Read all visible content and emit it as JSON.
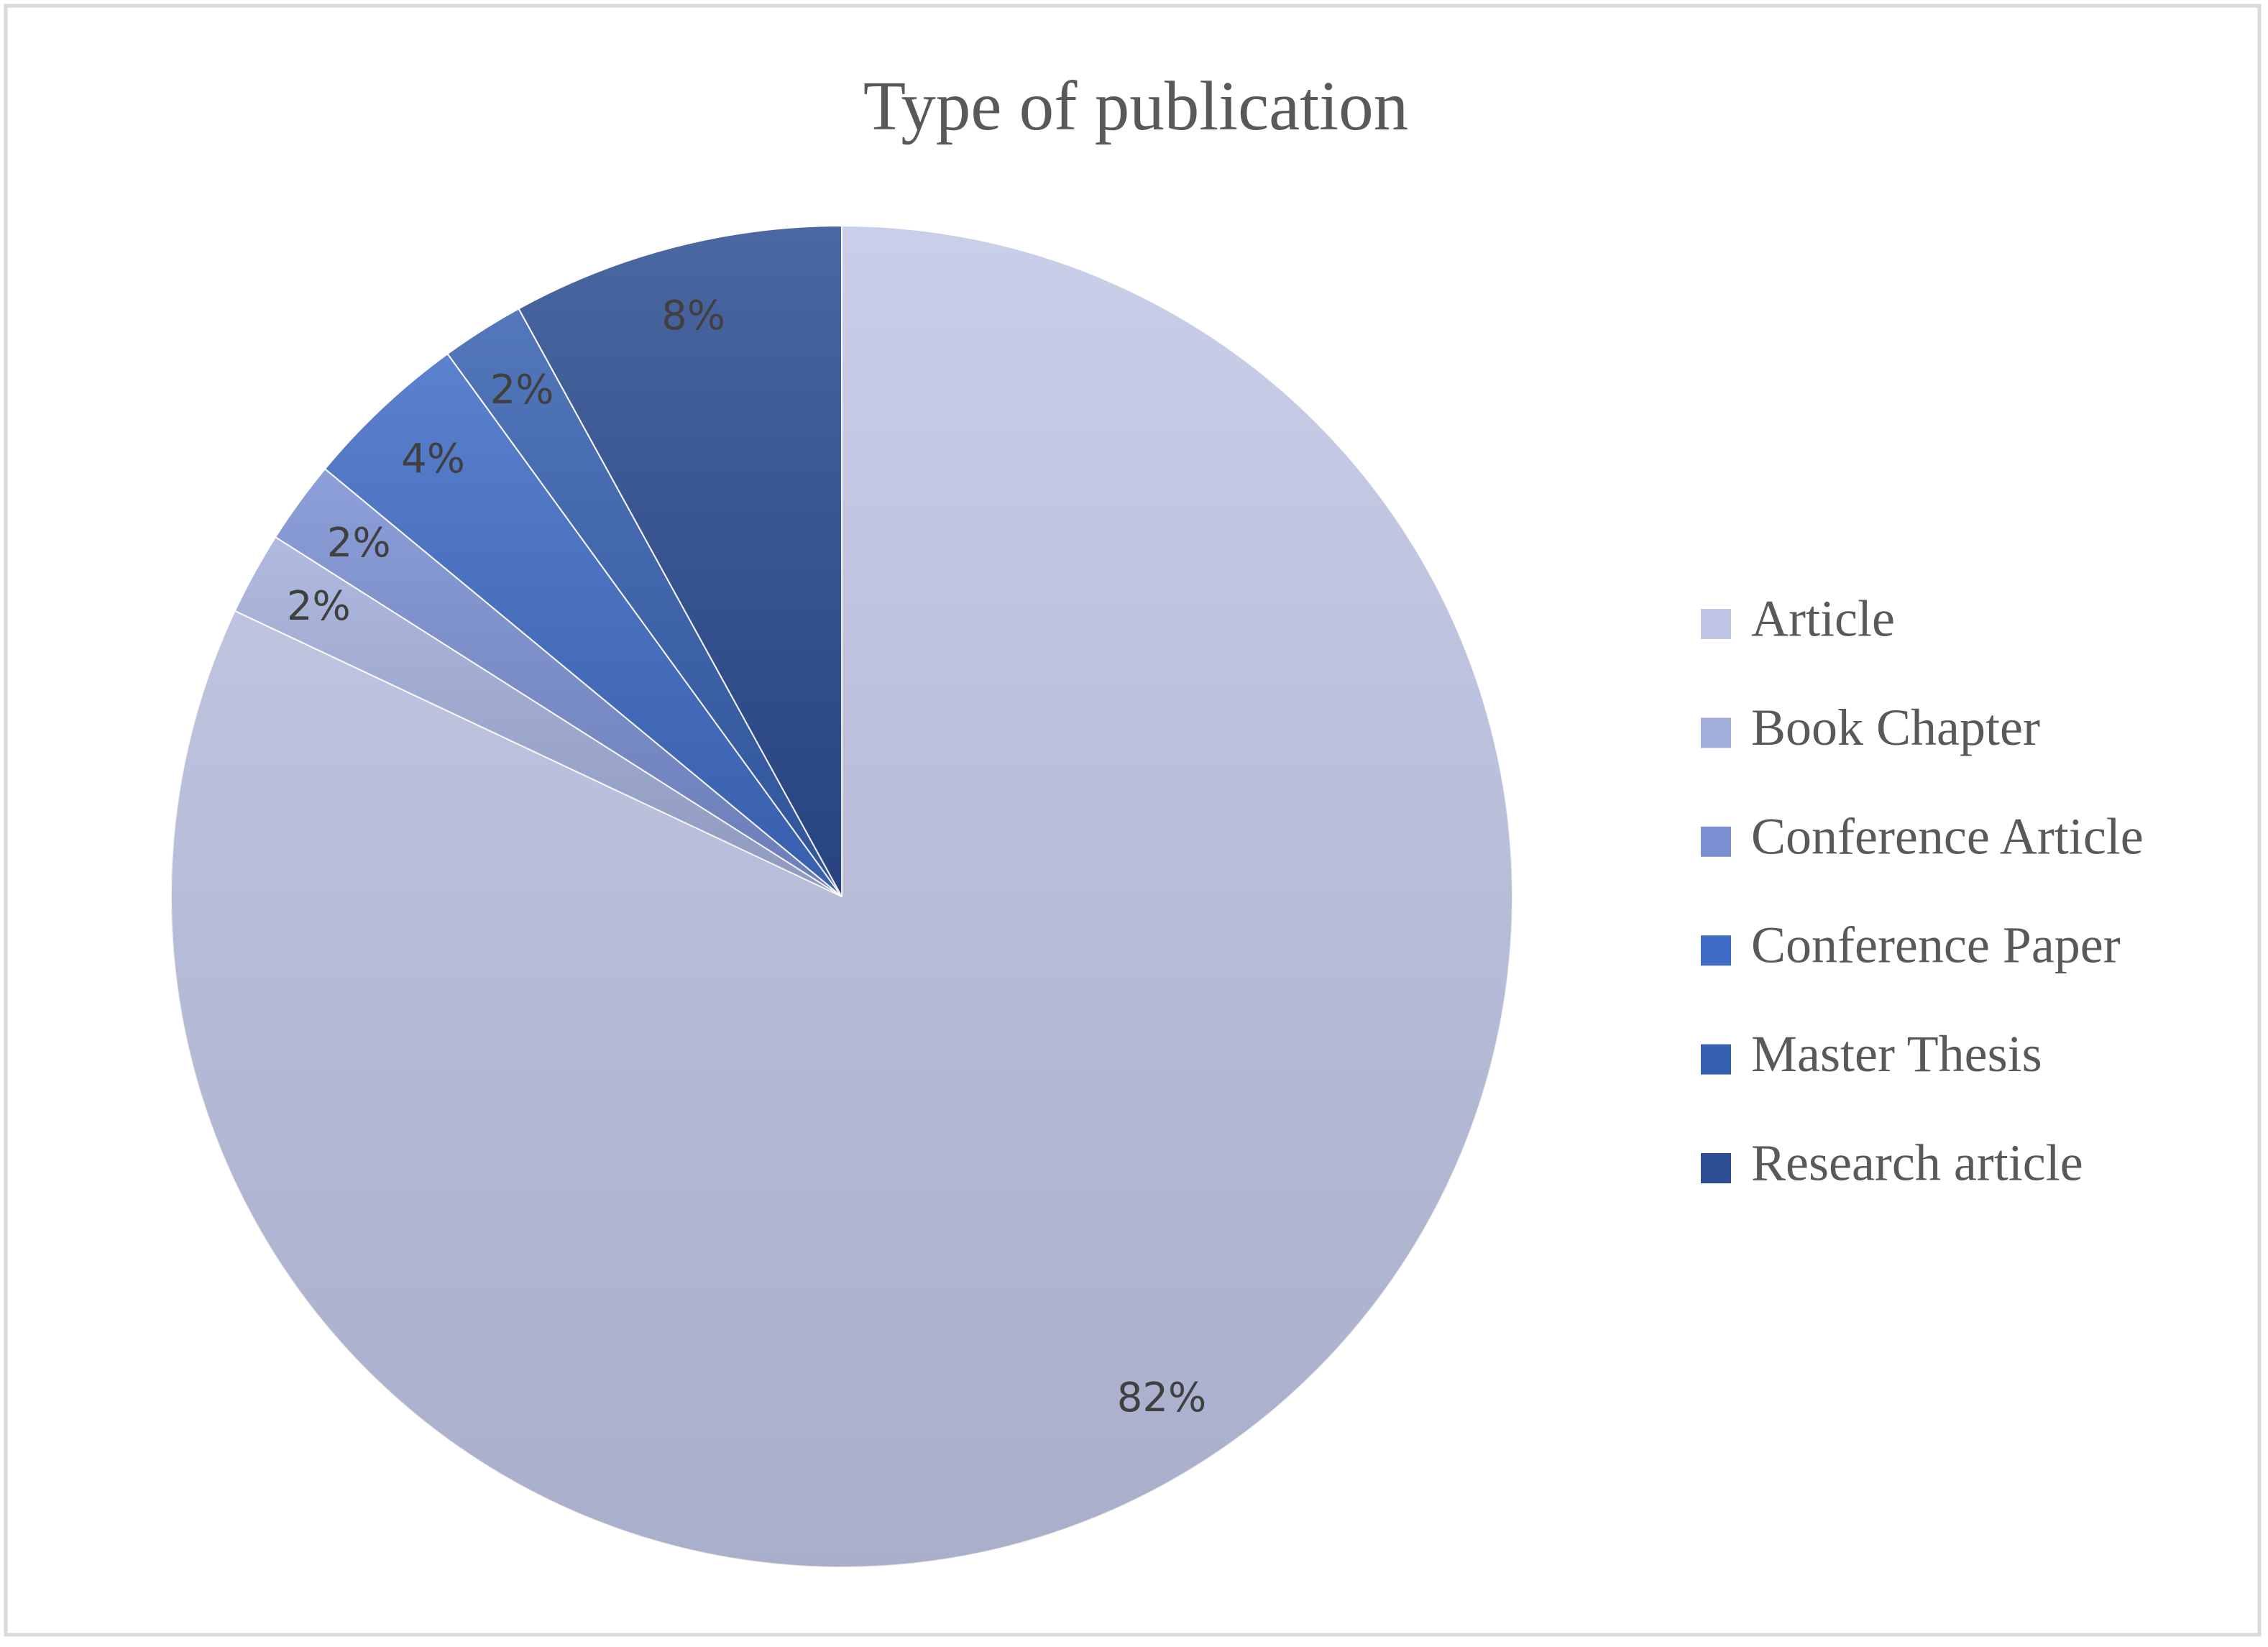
{
  "chart_data": {
    "type": "pie",
    "title": "Type of publication",
    "categories": [
      "Article",
      "Book Chapter",
      "Conference Article",
      "Conference Paper",
      "Master Thesis",
      "Research article"
    ],
    "values": [
      82,
      2,
      2,
      4,
      2,
      8
    ],
    "value_labels": [
      "82%",
      "2%",
      "2%",
      "4%",
      "2%",
      "8%"
    ],
    "colors": [
      "#c0c7e6",
      "#a3afdb",
      "#7a8fd2",
      "#3f6cc6",
      "#3660b0",
      "#2c4d92"
    ],
    "legend": "right"
  }
}
